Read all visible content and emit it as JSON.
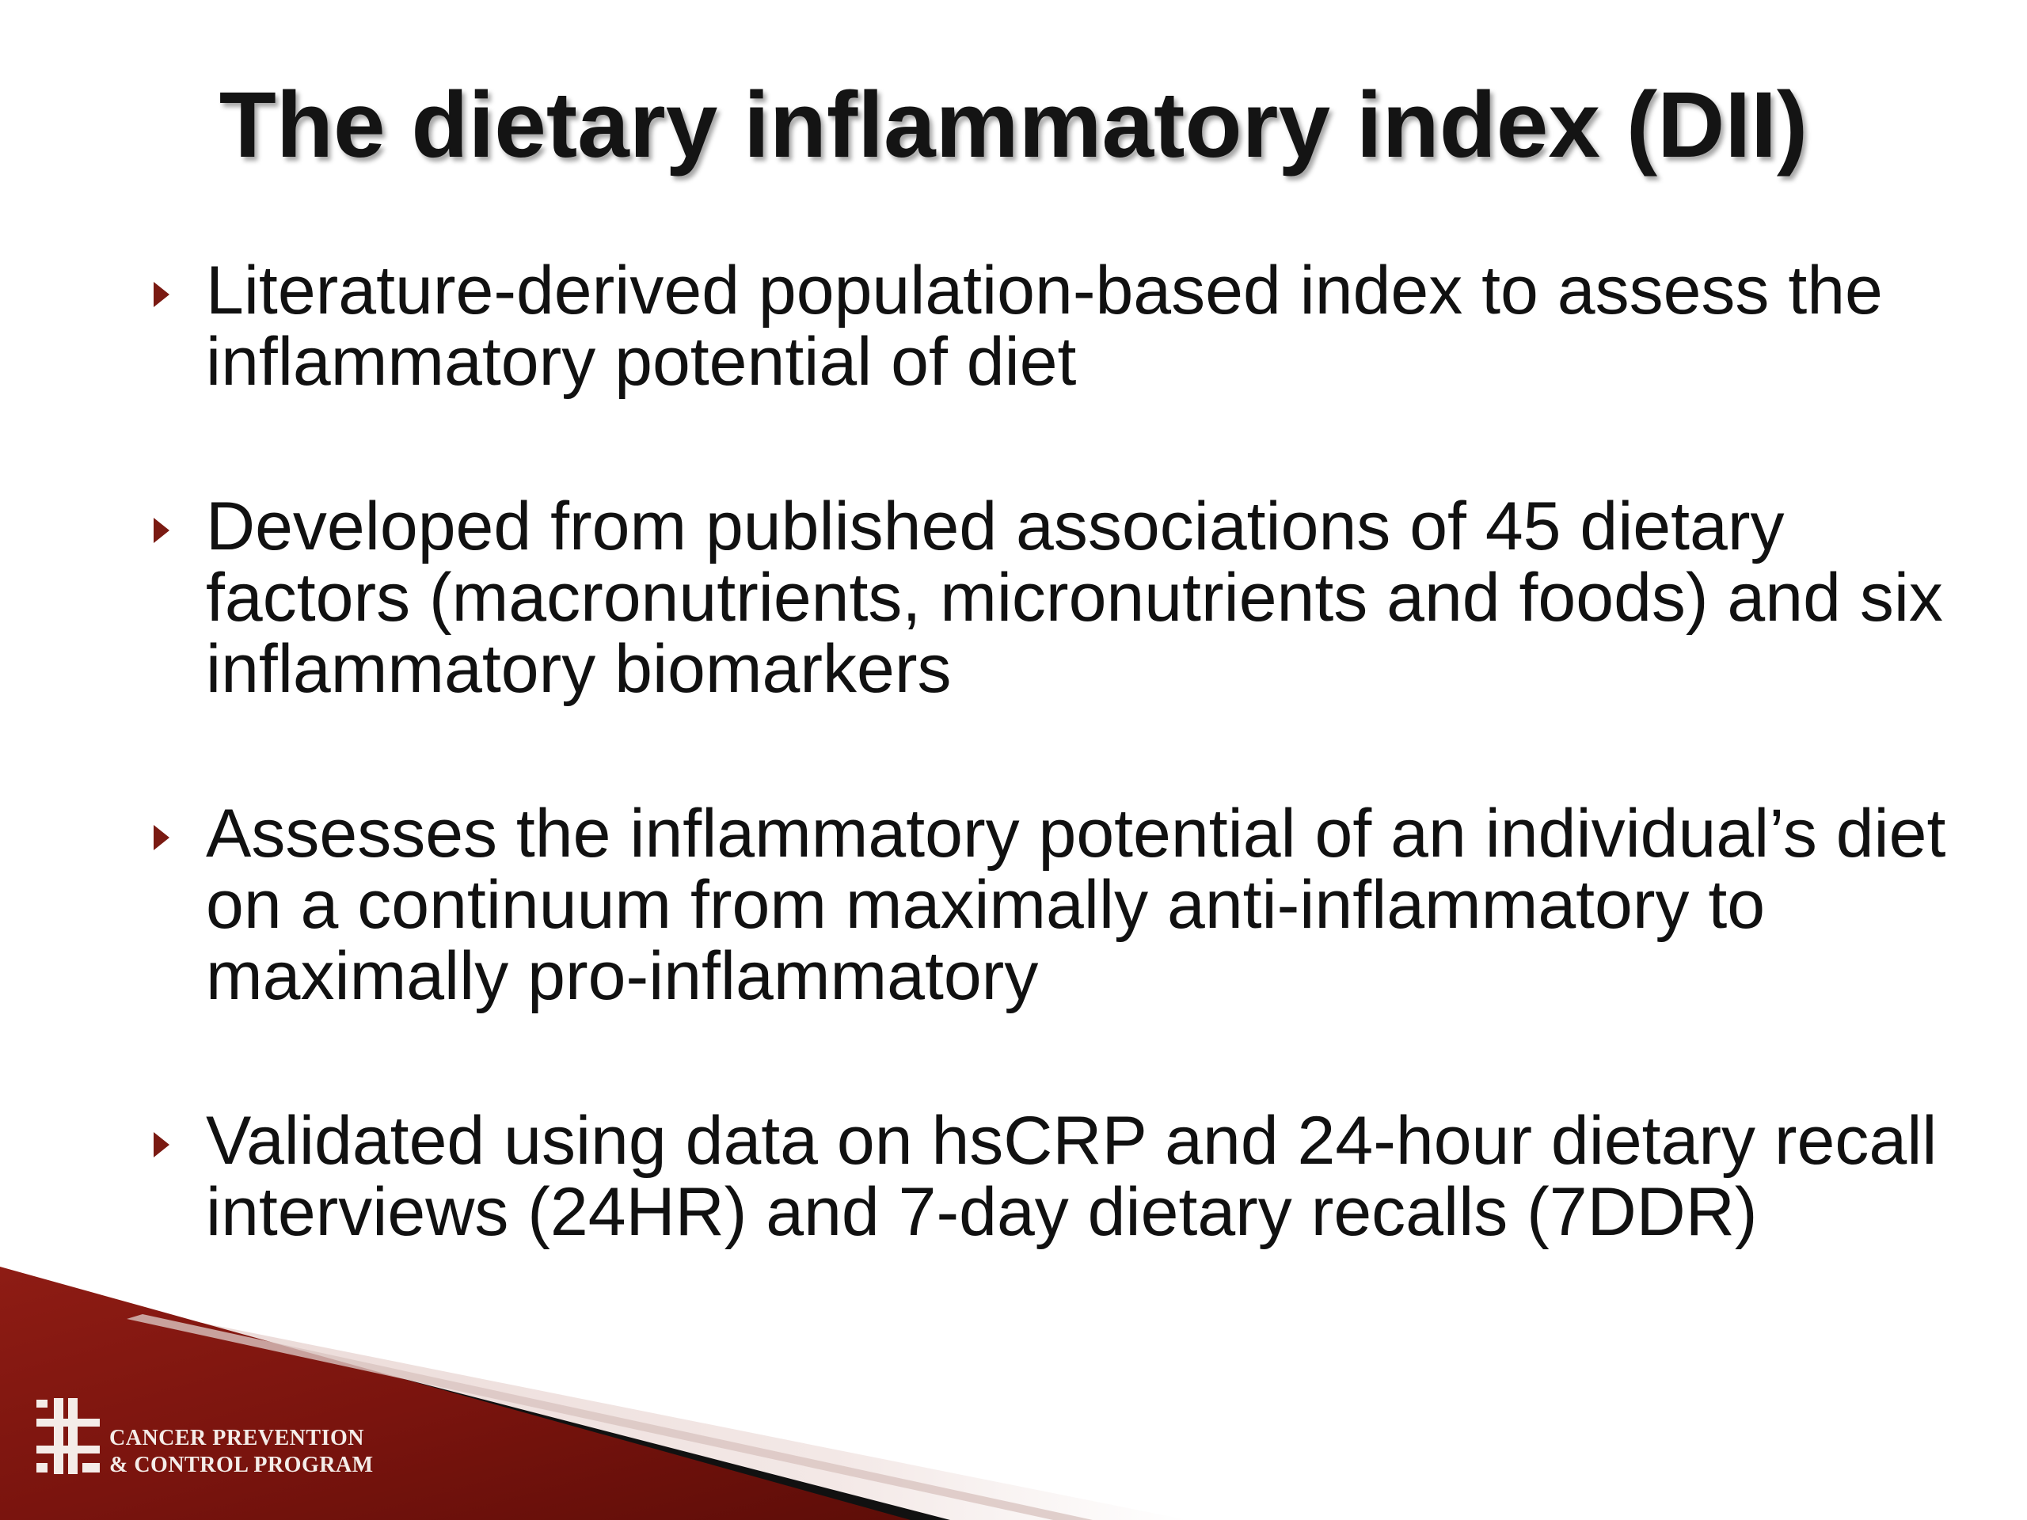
{
  "slide": {
    "title": "The dietary inflammatory index (DII)",
    "bullets": [
      {
        "text": "Literature-derived population-based index to assess the inflammatory potential of diet"
      },
      {
        "text": "Developed from published associations of 45 dietary factors (macronutrients, micronutrients and foods) and six inflammatory biomarkers"
      },
      {
        "text": "Assesses the inflammatory potential of an individual’s diet on a continuum from maximally anti-inflammatory to maximally pro-inflammatory"
      },
      {
        "text": "Validated using data on hsCRP and 24-hour dietary recall interviews (24HR) and 7-day dietary recalls (7DDR)"
      }
    ],
    "bullet_icon": "triangle-bullet-icon",
    "accent_color": "#7a1a12"
  },
  "footer": {
    "logo_line1": "CANCER PREVENTION",
    "logo_line2": "& CONTROL PROGRAM",
    "logo_icon": "cpcp-logo-icon"
  }
}
